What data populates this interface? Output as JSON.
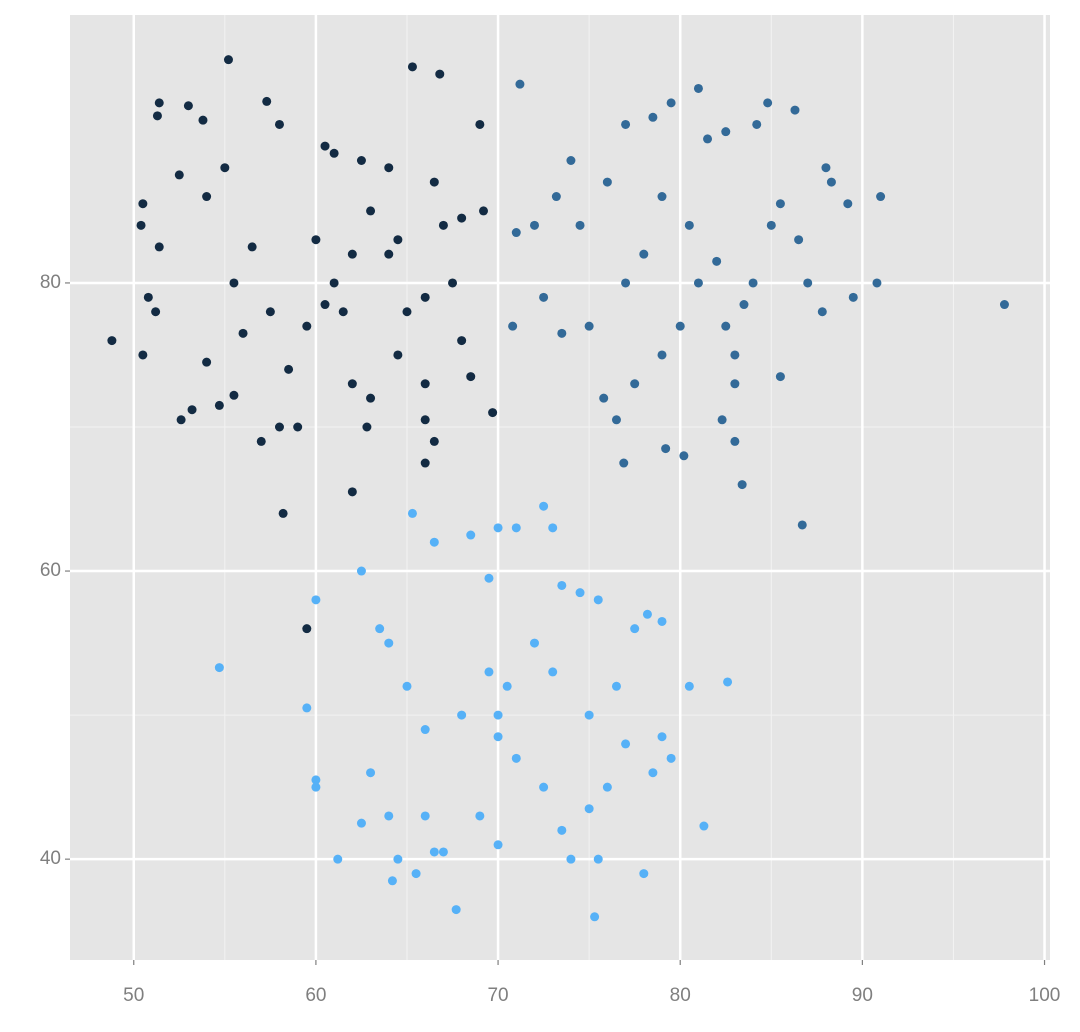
{
  "chart_data": {
    "type": "scatter",
    "xlim": [
      46.5,
      100.3
    ],
    "ylim": [
      33,
      98.6
    ],
    "xticks": [
      50,
      60,
      70,
      80,
      90,
      100
    ],
    "yticks": [
      40,
      60,
      80
    ],
    "grid": true,
    "background": "#e5e5e5",
    "series": [
      {
        "color": "#132b43",
        "x": [
          51.4,
          51.3,
          53,
          53.8,
          57.3,
          58,
          52.5,
          50.5,
          50.4,
          51.4,
          50.8,
          51.2,
          50.5,
          52.6,
          53.2,
          54,
          54.7,
          55.5,
          57,
          58,
          59,
          58.5,
          59.5,
          60.5,
          61,
          61.5,
          62,
          60,
          60.5,
          61,
          63,
          64,
          64.5,
          65,
          66,
          67.5,
          67,
          66.5,
          68,
          68,
          66,
          64.5,
          63,
          62,
          62.8,
          66,
          66.5,
          66,
          55.5,
          56.5,
          57.5,
          56,
          54,
          55,
          64,
          62.5,
          69.2,
          68.5,
          48.8,
          55.2,
          65.3,
          66.8,
          58.2,
          62,
          59.5,
          69.7,
          69
        ],
        "y": [
          92.5,
          91.6,
          92.3,
          91.3,
          92.6,
          91,
          87.5,
          85.5,
          84,
          82.5,
          79,
          78,
          75,
          70.5,
          71.2,
          74.5,
          71.5,
          72.2,
          69,
          70,
          70,
          74,
          77,
          78.5,
          80,
          78,
          82,
          83,
          89.5,
          89,
          85,
          82,
          83,
          78,
          79,
          80,
          84,
          87,
          84.5,
          76,
          73,
          75,
          72,
          73,
          70,
          70.5,
          69,
          67.5,
          80,
          82.5,
          78,
          76.5,
          86,
          88,
          88,
          88.5,
          85,
          73.5,
          76,
          95.5,
          95,
          94.5,
          64,
          65.5,
          56,
          71,
          91
        ]
      },
      {
        "color": "#336a98",
        "x": [
          77,
          78.5,
          79.5,
          84.8,
          86.3,
          84.2,
          82.5,
          76,
          74,
          73.2,
          74.5,
          72,
          71,
          70.8,
          72.5,
          73.5,
          75,
          75.8,
          76.5,
          77.5,
          79,
          80,
          81,
          82,
          82.5,
          83,
          83.5,
          84,
          85,
          85.5,
          86.5,
          87,
          87.8,
          88,
          88.3,
          89.2,
          89.5,
          90.8,
          85.5,
          83,
          80.2,
          79.2,
          82.3,
          83,
          78,
          79,
          80.5,
          77,
          81.5,
          71.2,
          97.8,
          86.7,
          83.4,
          81,
          91,
          76.9
        ],
        "y": [
          91,
          91.5,
          92.5,
          92.5,
          92,
          91,
          90.5,
          87,
          88.5,
          86,
          84,
          84,
          83.5,
          77,
          79,
          76.5,
          77,
          72,
          70.5,
          73,
          75,
          77,
          80,
          81.5,
          77,
          75,
          78.5,
          80,
          84,
          85.5,
          83,
          80,
          78,
          88,
          87,
          85.5,
          79,
          80,
          73.5,
          73,
          68,
          68.5,
          70.5,
          69,
          82,
          86,
          84,
          80,
          90,
          93.8,
          78.5,
          63.2,
          66,
          93.5,
          86,
          67.5
        ]
      },
      {
        "color": "#56b1f7",
        "x": [
          60,
          59.5,
          60,
          60,
          61.2,
          62.5,
          63,
          64,
          64.2,
          64.5,
          65.5,
          66,
          66.5,
          67,
          66,
          65,
          64,
          63.5,
          62.5,
          66.5,
          68.5,
          69.5,
          70,
          71,
          73,
          73.5,
          74.5,
          75.5,
          77.5,
          78.2,
          79,
          79,
          79.5,
          78.5,
          77,
          76,
          75,
          74,
          73.5,
          72.5,
          71,
          70,
          70.5,
          69.5,
          70,
          68,
          72,
          73,
          75,
          76.5,
          80.5,
          78,
          75.5,
          70,
          69,
          54.7,
          67.7,
          75.3,
          81.3,
          82.6,
          65.3,
          72.5
        ],
        "y": [
          58,
          50.5,
          45.5,
          45,
          40,
          42.5,
          46,
          43,
          38.5,
          40,
          39,
          43,
          40.5,
          40.5,
          49,
          52,
          55,
          56,
          60,
          62,
          62.5,
          59.5,
          63,
          63,
          63,
          59,
          58.5,
          58,
          56,
          57,
          56.5,
          48.5,
          47,
          46,
          48,
          45,
          43.5,
          40,
          42,
          45,
          47,
          48.5,
          52,
          53,
          50,
          50,
          55,
          53,
          50,
          52,
          52,
          39,
          40,
          41,
          43,
          53.3,
          36.5,
          36,
          42.3,
          52.3,
          64,
          64.5
        ]
      }
    ]
  }
}
